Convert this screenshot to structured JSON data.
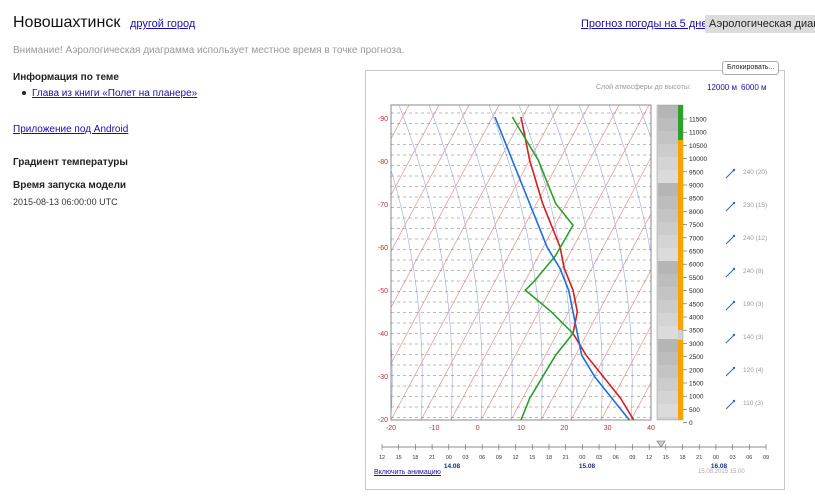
{
  "header": {
    "city": "Новошахтинск",
    "other_city_link": "другой город",
    "forecast_link": "Прогноз погоды на 5 дней",
    "aerology_tab": "Аэрологическая диаграмма"
  },
  "warning": "Внимание! Аэрологическая диаграмма использует местное время в точке прогноза.",
  "sidebar": {
    "info_heading": "Информация по теме",
    "info_link": "Глава из книги «Полет на планере»",
    "android_link": "Приложение под Android",
    "gradient_heading": "Градиент температуры",
    "model_run_heading": "Время запуска модели",
    "model_run_value": "2015-08-13 06:00:00 UTC"
  },
  "diagram": {
    "block_button": "Блокировать...",
    "layer_label": "Слой атмосферы до высоты:",
    "layer_12000": "12000 м",
    "layer_6000": "6000 м",
    "animation_link": "Включить анимацию",
    "timestamp_note": "15.08.2015 15:00",
    "t_ticks": [
      "-20",
      "-10",
      "0",
      "10",
      "20",
      "30",
      "40"
    ],
    "p_ticks": [
      "-90",
      "-80",
      "-70",
      "-60",
      "-50",
      "-40",
      "-30",
      "-20"
    ],
    "altitude_labels": [
      "11500",
      "11000",
      "10500",
      "10000",
      "9500",
      "9000",
      "8500",
      "8000",
      "7500",
      "7000",
      "6500",
      "6000",
      "5500",
      "5000",
      "4500",
      "4000",
      "3500",
      "3000",
      "2500",
      "2000",
      "1500",
      "1000",
      "500",
      "0"
    ],
    "wind_labels": [
      "240 (20)",
      "230 (15)",
      "240 (12)",
      "240 (8)",
      "190 (3)",
      "140 (3)",
      "120 (4)",
      "110 (3)"
    ],
    "timeline_hours": [
      "12",
      "15",
      "18",
      "21",
      "00",
      "03",
      "06",
      "09",
      "12",
      "15",
      "18",
      "21",
      "00",
      "03",
      "06",
      "09",
      "12",
      "15",
      "18",
      "21",
      "00",
      "03",
      "06",
      "09"
    ],
    "timeline_dates": [
      "14.08",
      "15.08",
      "16.08"
    ],
    "colors": {
      "temperature": "#d42020",
      "dewpoint": "#2aa02a",
      "parcel": "#1f6fd6",
      "dry_adiabat": "#d86060",
      "moist_adiabat": "#9aa8e0",
      "cloud_bar_orange": "#f5a400",
      "cloud_bar_green": "#2ea02e"
    }
  },
  "chart_data": {
    "type": "line",
    "title": "",
    "xlabel": "",
    "ylabel": "",
    "xlim": [
      -20,
      40
    ],
    "ylim": [
      -20,
      -90
    ],
    "series": [
      {
        "name": "",
        "x": [
          36,
          33,
          29,
          25,
          22,
          23,
          22,
          20,
          19,
          17,
          15,
          12,
          10
        ],
        "y": [
          -20,
          -25,
          -30,
          -35,
          -40,
          -45,
          -50,
          -55,
          -60,
          -65,
          -70,
          -80,
          -90
        ]
      },
      {
        "name": "",
        "x": [
          10,
          12,
          15,
          18,
          22,
          17,
          11,
          13,
          18,
          22,
          18,
          14,
          11,
          8
        ],
        "y": [
          -20,
          -25,
          -30,
          -35,
          -40,
          -45,
          -50,
          -52,
          -58,
          -65,
          -70,
          -80,
          -85,
          -90
        ]
      },
      {
        "name": "",
        "x": [
          35,
          31,
          27,
          24,
          23,
          22,
          21,
          19,
          16,
          12,
          8,
          4
        ],
        "y": [
          -20,
          -25,
          -30,
          -35,
          -40,
          -45,
          -50,
          -55,
          -60,
          -70,
          -80,
          -90
        ]
      }
    ]
  }
}
